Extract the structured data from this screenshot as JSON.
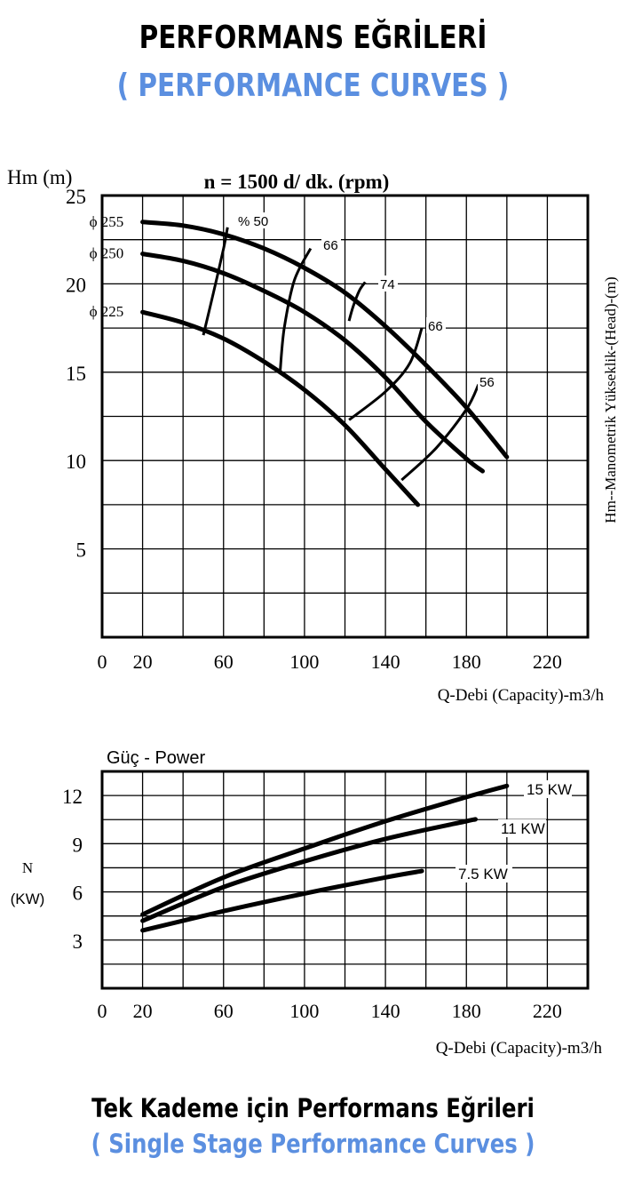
{
  "header": {
    "title": "PERFORMANS EĞRİLERİ",
    "subtitle": "( PERFORMANCE CURVES )"
  },
  "footer": {
    "title": "Tek Kademe için Performans Eğrileri",
    "subtitle": "( Single Stage Performance Curves )"
  },
  "colors": {
    "accent": "#5b8fe0",
    "ink": "#000000"
  },
  "chart_data": [
    {
      "type": "line",
      "title": "n = 1500 d/ dk.  (rpm)",
      "ylabel_top": "Hm (m)",
      "ylabel_right": "Hm--Manometrik Yükseklik-(Head)-(m)",
      "xlabel": "Q-Debi (Capacity)-m3/h",
      "xlim": [
        0,
        240
      ],
      "ylim": [
        0,
        25
      ],
      "x_ticks": [
        0,
        20,
        60,
        100,
        140,
        180,
        220
      ],
      "y_ticks": [
        5,
        10,
        15,
        20,
        25
      ],
      "grid": true,
      "series": [
        {
          "name": "ϕ 255",
          "x": [
            20,
            40,
            60,
            80,
            100,
            120,
            140,
            160,
            180,
            200
          ],
          "y": [
            23.5,
            23.3,
            22.8,
            22.0,
            20.9,
            19.5,
            17.6,
            15.4,
            13.0,
            10.2
          ]
        },
        {
          "name": "ϕ 250",
          "x": [
            20,
            40,
            60,
            80,
            100,
            120,
            140,
            160,
            180,
            188
          ],
          "y": [
            21.7,
            21.3,
            20.6,
            19.6,
            18.4,
            16.8,
            14.7,
            12.2,
            10.1,
            9.4
          ]
        },
        {
          "name": "ϕ 225",
          "x": [
            20,
            40,
            60,
            80,
            100,
            120,
            140,
            156
          ],
          "y": [
            18.4,
            17.8,
            16.9,
            15.6,
            14.0,
            12.0,
            9.5,
            7.5
          ]
        }
      ],
      "efficiency_curves": [
        {
          "label": "% 50",
          "x": [
            50,
            55,
            60,
            62
          ],
          "y": [
            17.1,
            19.5,
            22.0,
            23.2
          ]
        },
        {
          "label": "66",
          "x": [
            88,
            90,
            95,
            103
          ],
          "y": [
            15.1,
            17.5,
            20.2,
            22.0
          ]
        },
        {
          "label": "74",
          "x": [
            122,
            124,
            127,
            130
          ],
          "y": [
            17.9,
            18.7,
            19.6,
            20.1
          ]
        },
        {
          "label": "66",
          "x": [
            122,
            140,
            152,
            158
          ],
          "y": [
            12.3,
            13.9,
            15.5,
            17.5
          ]
        },
        {
          "label": "56",
          "x": [
            148,
            165,
            180,
            186
          ],
          "y": [
            8.9,
            10.7,
            12.9,
            14.3
          ]
        }
      ]
    },
    {
      "type": "line",
      "title": "Güç - Power",
      "ylabel": "N (KW)",
      "ylabel_line1": "N",
      "ylabel_line2": "(KW)",
      "xlabel": "Q-Debi (Capacity)-m3/h",
      "xlim": [
        0,
        240
      ],
      "ylim": [
        0,
        13.5
      ],
      "x_ticks": [
        0,
        20,
        60,
        100,
        140,
        180,
        220
      ],
      "y_ticks": [
        3,
        6,
        9,
        12
      ],
      "grid": true,
      "series": [
        {
          "name": "15 KW",
          "x": [
            20,
            60,
            100,
            140,
            180,
            200
          ],
          "y": [
            4.6,
            6.9,
            8.7,
            10.4,
            11.9,
            12.6
          ]
        },
        {
          "name": "11 KW",
          "x": [
            20,
            60,
            100,
            140,
            180,
            184
          ],
          "y": [
            4.2,
            6.3,
            7.9,
            9.3,
            10.4,
            10.5
          ]
        },
        {
          "name": "7.5 KW",
          "x": [
            20,
            60,
            100,
            140,
            158
          ],
          "y": [
            3.6,
            4.8,
            5.9,
            6.9,
            7.3
          ]
        }
      ]
    }
  ]
}
